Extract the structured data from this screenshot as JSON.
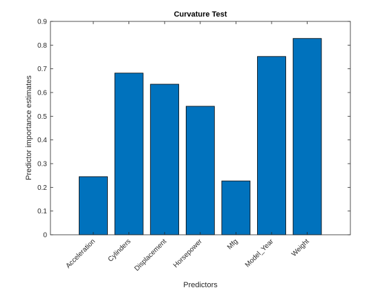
{
  "chart_data": {
    "type": "bar",
    "title": "Curvature Test",
    "xlabel": "Predictors",
    "ylabel": "Predictor importance estimates",
    "categories": [
      "Acceleration",
      "Cylinders",
      "Displacement",
      "Horsepower",
      "Mfg",
      "Model_Year",
      "Weight"
    ],
    "values": [
      0.245,
      0.682,
      0.635,
      0.542,
      0.227,
      0.752,
      0.828
    ],
    "ylim": [
      0,
      0.9
    ],
    "yticks": [
      "0",
      "0.1",
      "0.2",
      "0.3",
      "0.4",
      "0.5",
      "0.6",
      "0.7",
      "0.8",
      "0.9"
    ],
    "bar_color": "#0072BD",
    "grid": false,
    "legend": "none"
  }
}
